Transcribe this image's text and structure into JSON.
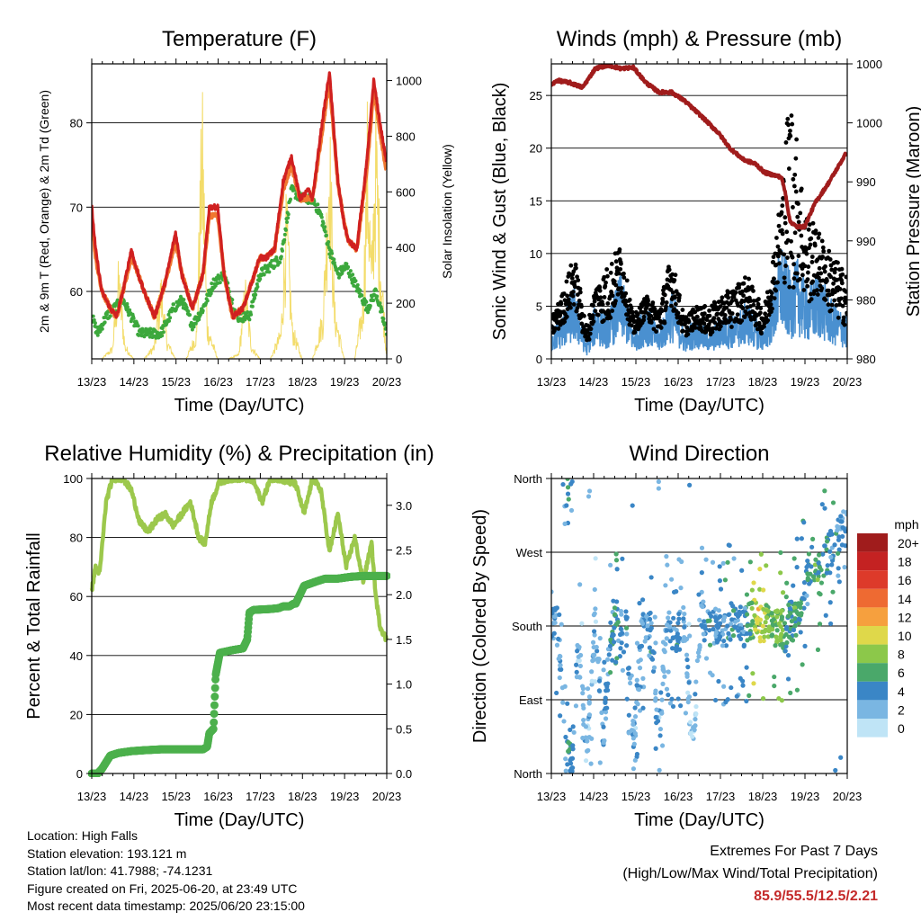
{
  "charts": {
    "temperature": {
      "title": "Temperature (F)",
      "ylabel_left": "2m & 9m T (Red, Orange) & 2m Td (Green)",
      "ylabel_right": "Solar Insolation (Yellow)",
      "xlabel": "Time (Day/UTC)",
      "xticks": [
        "13/23",
        "14/23",
        "15/23",
        "16/23",
        "17/23",
        "18/23",
        "19/23",
        "20/23"
      ],
      "yticks_left": [
        "60",
        "70",
        "80"
      ],
      "yticks_right": [
        "0",
        "200",
        "400",
        "600",
        "800",
        "1000"
      ]
    },
    "winds": {
      "title": "Winds (mph) & Pressure (mb)",
      "ylabel_left": "Sonic Wind & Gust (Blue, Black)",
      "ylabel_right": "Station Pressure (Maroon)",
      "xlabel": "Time (Day/UTC)",
      "xticks": [
        "13/23",
        "14/23",
        "15/23",
        "16/23",
        "17/23",
        "18/23",
        "19/23",
        "20/23"
      ],
      "yticks_left": [
        "0",
        "5",
        "10",
        "15",
        "20",
        "25"
      ],
      "yticks_right": [
        "980",
        "980",
        "990",
        "990",
        "1000",
        "1000"
      ]
    },
    "humidity": {
      "title": "Relative Humidity (%) & Precipitation (in)",
      "ylabel_left": "Percent & Total Rainfall",
      "xlabel": "Time (Day/UTC)",
      "xticks": [
        "13/23",
        "14/23",
        "15/23",
        "16/23",
        "17/23",
        "18/23",
        "19/23",
        "20/23"
      ],
      "yticks_left": [
        "0",
        "20",
        "40",
        "60",
        "80",
        "100"
      ],
      "yticks_right": [
        "0.0",
        "0.5",
        "1.0",
        "1.5",
        "2.0",
        "2.5",
        "3.0"
      ]
    },
    "direction": {
      "title": "Wind Direction",
      "ylabel_left": "Direction (Colored By Speed)",
      "xlabel": "Time (Day/UTC)",
      "xticks": [
        "13/23",
        "14/23",
        "15/23",
        "16/23",
        "17/23",
        "18/23",
        "19/23",
        "20/23"
      ],
      "yticks_left": [
        "North",
        "East",
        "South",
        "West",
        "North"
      ],
      "legend_title": "mph",
      "legend_labels": [
        "20+",
        "18",
        "16",
        "14",
        "12",
        "10",
        "8",
        "6",
        "4",
        "2",
        "0"
      ],
      "legend_colors": [
        "#a01c1c",
        "#c42222",
        "#dd3a2a",
        "#ee6a32",
        "#f6a03e",
        "#dfd84a",
        "#8cc84a",
        "#4aa86a",
        "#3a86c6",
        "#7ab6e2",
        "#bfe4f6"
      ]
    }
  },
  "chart_data": [
    {
      "type": "line",
      "title": "Temperature (F)",
      "xlabel": "Time (Day/UTC)",
      "ylabel": "2m & 9m T (Red, Orange) & 2m Td (Green)",
      "ylabel_right": "Solar Insolation (Yellow)",
      "xlim": [
        13.96,
        20.96
      ],
      "ylim": [
        52,
        87
      ],
      "ylim_right": [
        0,
        1060
      ],
      "colors": {
        "t2m": "#d02020",
        "t9m": "#f07830",
        "td": "#3ca83c",
        "solar": "#f3dc6a"
      },
      "series": [
        {
          "name": "2m T",
          "x": [
            13.96,
            14.05,
            14.2,
            14.4,
            14.55,
            14.7,
            14.9,
            15.0,
            15.2,
            15.45,
            15.7,
            15.95,
            16.1,
            16.35,
            16.6,
            16.75,
            16.95,
            17.1,
            17.3,
            17.55,
            17.75,
            17.95,
            18.1,
            18.3,
            18.5,
            18.7,
            18.9,
            19.1,
            19.2,
            19.4,
            19.6,
            19.8,
            19.95,
            20.05,
            20.25,
            20.5,
            20.65,
            20.8,
            20.96
          ],
          "y": [
            70,
            65,
            60,
            58,
            57,
            60,
            65,
            63,
            60,
            57,
            61,
            67,
            62,
            58,
            62,
            70,
            70,
            62,
            57,
            58,
            61,
            64,
            64,
            65,
            73,
            76,
            71,
            72,
            71,
            79,
            86,
            73,
            68,
            66,
            65,
            76,
            85,
            80,
            75
          ]
        },
        {
          "name": "9m T",
          "x": [
            13.96,
            14.05,
            14.2,
            14.4,
            14.55,
            14.7,
            14.9,
            15.0,
            15.2,
            15.45,
            15.7,
            15.95,
            16.1,
            16.35,
            16.6,
            16.75,
            16.95,
            17.1,
            17.3,
            17.55,
            17.75,
            17.95,
            18.1,
            18.3,
            18.5,
            18.7,
            18.9,
            19.1,
            19.2,
            19.4,
            19.6,
            19.8,
            19.95,
            20.05,
            20.25,
            20.5,
            20.65,
            20.8,
            20.96
          ],
          "y": [
            69,
            64,
            60,
            58,
            57,
            60,
            64,
            63,
            60,
            57,
            61,
            66,
            62,
            58,
            62,
            69,
            69,
            62,
            57,
            58,
            61,
            64,
            64,
            65,
            72,
            75,
            71,
            71,
            71,
            78,
            85,
            73,
            68,
            66,
            65,
            75,
            84,
            79,
            74
          ]
        },
        {
          "name": "2m Td",
          "x": [
            13.96,
            14.1,
            14.3,
            14.5,
            14.7,
            14.9,
            15.1,
            15.3,
            15.6,
            15.9,
            16.1,
            16.35,
            16.6,
            16.85,
            17.1,
            17.4,
            17.7,
            17.95,
            18.2,
            18.45,
            18.7,
            18.95,
            19.2,
            19.4,
            19.6,
            19.8,
            20.0,
            20.3,
            20.5,
            20.7,
            20.96
          ],
          "y": [
            57,
            55,
            57,
            58,
            59,
            57,
            55,
            55,
            55,
            58,
            59,
            56,
            58,
            61,
            62,
            57,
            57,
            62,
            63,
            64,
            72,
            71,
            71,
            69,
            65,
            62,
            63,
            60,
            58,
            60,
            55
          ]
        },
        {
          "name": "Solar Insolation",
          "x": [
            13.96,
            14.2,
            14.45,
            14.6,
            14.75,
            14.95,
            15.2,
            15.45,
            15.6,
            15.75,
            15.95,
            16.2,
            16.45,
            16.58,
            16.7,
            16.95,
            17.2,
            17.45,
            17.6,
            17.75,
            17.95,
            18.2,
            18.45,
            18.58,
            18.72,
            18.95,
            19.2,
            19.45,
            19.6,
            19.72,
            19.95,
            20.2,
            20.4,
            20.5,
            20.6,
            20.7,
            20.8,
            20.96
          ],
          "y": [
            0,
            0,
            50,
            380,
            60,
            0,
            0,
            60,
            330,
            80,
            0,
            0,
            120,
            1050,
            150,
            0,
            0,
            20,
            320,
            60,
            0,
            0,
            120,
            640,
            140,
            0,
            0,
            200,
            980,
            220,
            0,
            0,
            250,
            950,
            380,
            1000,
            500,
            0
          ]
        }
      ]
    },
    {
      "type": "scatter",
      "title": "Winds (mph) & Pressure (mb)",
      "xlabel": "Time (Day/UTC)",
      "ylabel": "Sonic Wind & Gust (Blue, Black)",
      "ylabel_right": "Station Pressure (Maroon)",
      "xlim": [
        13.96,
        20.96
      ],
      "ylim": [
        0,
        28
      ],
      "ylim_right": [
        975,
        1000
      ],
      "colors": {
        "wind": "#4a90d0",
        "gust": "#000000",
        "pressure": "#a01c1c"
      },
      "series": [
        {
          "name": "Sonic Wind",
          "x": [
            13.96,
            14.2,
            14.5,
            14.8,
            15.0,
            15.3,
            15.6,
            15.9,
            16.2,
            16.5,
            16.8,
            17.1,
            17.4,
            17.7,
            18.0,
            18.3,
            18.6,
            18.8,
            19.0,
            19.2,
            19.4,
            19.6,
            19.8,
            20.0,
            20.3,
            20.6,
            20.96
          ],
          "y": [
            2,
            3,
            5,
            1,
            4,
            3,
            6,
            2,
            4,
            2,
            5,
            2,
            3,
            2,
            3,
            3,
            4,
            3,
            2,
            5,
            8,
            6,
            7,
            5,
            6,
            4,
            3
          ]
        },
        {
          "name": "Gust",
          "x": [
            13.96,
            14.2,
            14.5,
            14.8,
            15.0,
            15.3,
            15.6,
            15.9,
            16.2,
            16.5,
            16.8,
            17.1,
            17.4,
            17.7,
            18.0,
            18.3,
            18.6,
            18.8,
            19.0,
            19.2,
            19.4,
            19.6,
            19.8,
            20.0,
            20.3,
            20.6,
            20.96
          ],
          "y": [
            4,
            6,
            10,
            3,
            7,
            9,
            11,
            4,
            6,
            5,
            10,
            4,
            5,
            5,
            6,
            7,
            8,
            6,
            5,
            10,
            16,
            26.5,
            20,
            14,
            12,
            10,
            8
          ]
        },
        {
          "name": "Station Pressure",
          "x": [
            13.96,
            14.1,
            14.4,
            14.7,
            15.0,
            15.3,
            15.6,
            15.9,
            16.2,
            16.5,
            16.8,
            17.1,
            17.5,
            17.9,
            18.2,
            18.5,
            18.8,
            19.0,
            19.2,
            19.4,
            19.5,
            19.6,
            19.75,
            19.95,
            20.2,
            20.5,
            20.7,
            20.96
          ],
          "y": [
            998.2,
            998.6,
            998.4,
            998.0,
            999.6,
            999.9,
            999.6,
            999.7,
            998.4,
            997.6,
            997.6,
            996.9,
            995.6,
            994.2,
            992.8,
            991.9,
            991.5,
            990.8,
            990.6,
            990.4,
            989.0,
            986.7,
            986.2,
            986.2,
            988.2,
            989.8,
            991.0,
            992.6
          ]
        }
      ]
    },
    {
      "type": "line",
      "title": "Relative Humidity (%) & Precipitation (in)",
      "xlabel": "Time (Day/UTC)",
      "ylabel": "Percent & Total Rainfall",
      "xlim": [
        13.96,
        20.96
      ],
      "ylim": [
        0,
        100
      ],
      "ylim_right": [
        0,
        3.3
      ],
      "colors": {
        "rh": "#9cc84c",
        "precip": "#4cb04c"
      },
      "series": [
        {
          "name": "Relative Humidity",
          "x": [
            13.96,
            14.05,
            14.15,
            14.3,
            14.45,
            14.55,
            14.7,
            14.9,
            15.1,
            15.3,
            15.5,
            15.7,
            15.9,
            16.1,
            16.3,
            16.5,
            16.65,
            16.8,
            17.0,
            17.3,
            17.6,
            17.8,
            18.0,
            18.2,
            18.4,
            18.6,
            18.8,
            19.0,
            19.2,
            19.4,
            19.6,
            19.8,
            20.0,
            20.2,
            20.4,
            20.6,
            20.7,
            20.8,
            20.96
          ],
          "y": [
            62,
            70,
            68,
            92,
            100,
            100,
            100,
            96,
            85,
            82,
            86,
            88,
            84,
            88,
            92,
            80,
            78,
            92,
            99,
            100,
            100,
            99,
            92,
            100,
            100,
            99,
            98,
            88,
            100,
            96,
            75,
            88,
            70,
            80,
            65,
            78,
            60,
            50,
            45
          ]
        },
        {
          "name": "Total Rainfall",
          "x": [
            13.96,
            14.1,
            14.2,
            14.4,
            14.6,
            14.9,
            15.2,
            15.6,
            16.0,
            16.4,
            16.55,
            16.6,
            16.7,
            16.75,
            16.85,
            16.9,
            17.0,
            17.3,
            17.55,
            17.65,
            17.7,
            17.8,
            18.2,
            18.4,
            18.5,
            18.65,
            18.75,
            18.8,
            19.0,
            19.3,
            19.5,
            19.8,
            20.1,
            20.4,
            20.96
          ],
          "y": [
            0,
            0,
            0.05,
            0.2,
            0.23,
            0.25,
            0.26,
            0.27,
            0.27,
            0.27,
            0.27,
            0.27,
            0.3,
            0.45,
            0.5,
            1.1,
            1.35,
            1.38,
            1.4,
            1.5,
            1.8,
            1.83,
            1.84,
            1.85,
            1.87,
            1.87,
            1.9,
            1.9,
            2.1,
            2.15,
            2.18,
            2.18,
            2.2,
            2.21,
            2.21
          ]
        }
      ]
    },
    {
      "type": "scatter",
      "title": "Wind Direction",
      "xlabel": "Time (Day/UTC)",
      "ylabel": "Direction (Colored By Speed)",
      "xlim": [
        13.96,
        20.96
      ],
      "ylim": [
        0,
        360
      ],
      "yticklabels": [
        "North",
        "East",
        "South",
        "West",
        "North"
      ],
      "series": [
        {
          "name": "Direction",
          "x": [
            14.1,
            14.3,
            14.35,
            14.45,
            14.6,
            14.8,
            15.0,
            15.2,
            15.35,
            15.5,
            15.6,
            15.75,
            15.9,
            16.1,
            16.3,
            16.5,
            16.7,
            16.9,
            17.1,
            17.3,
            17.5,
            17.7,
            17.9,
            18.1,
            18.3,
            18.5,
            18.6,
            18.75,
            18.85,
            19.0,
            19.2,
            19.4,
            19.5,
            19.6,
            19.7,
            19.8,
            20.0,
            20.1,
            20.2,
            20.35,
            20.5,
            20.7,
            20.85
          ],
          "y": [
            180,
            20,
            10,
            15,
            160,
            20,
            185,
            40,
            170,
            190,
            175,
            180,
            30,
            170,
            180,
            40,
            185,
            170,
            180,
            30,
            190,
            180,
            175,
            180,
            190,
            175,
            185,
            190,
            180,
            185,
            175,
            180,
            170,
            190,
            185,
            195,
            230,
            260,
            250,
            240,
            270,
            280,
            300
          ],
          "speed": [
            3,
            3,
            5,
            4,
            2,
            2,
            2,
            3,
            4,
            5,
            3,
            4,
            2,
            3,
            4,
            2,
            3,
            4,
            3,
            1,
            3,
            4,
            3,
            4,
            4,
            3,
            5,
            8,
            10,
            9,
            6,
            8,
            5,
            5,
            6,
            5,
            4,
            5,
            6,
            5,
            4,
            4,
            3
          ]
        }
      ]
    }
  ],
  "info": {
    "location": "Location: High Falls",
    "elevation": "Station elevation: 193.121 m",
    "latlon": "Station lat/lon: 41.7988; -74.1231",
    "created": "Figure created on Fri, 2025-06-20, at 23:49 UTC",
    "recent": "Most recent data timestamp: 2025/06/20 23:15:00"
  },
  "extremes": {
    "title": "Extremes For Past 7 Days",
    "subtitle": "(High/Low/Max Wind/Total Precipitation)",
    "values": "85.9/55.5/12.5/2.21"
  }
}
